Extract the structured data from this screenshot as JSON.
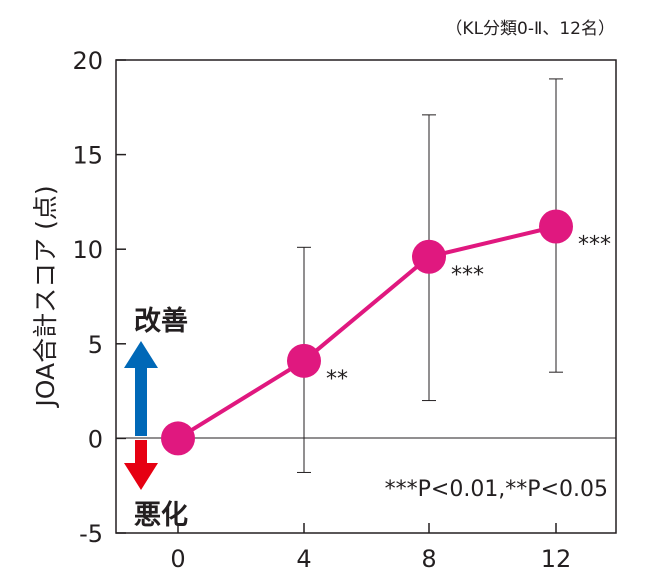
{
  "chart_data": {
    "type": "line",
    "note": "（KL分類0-Ⅱ、12名）",
    "ylabel": "JOA合計スコア (点)",
    "xlabel": "",
    "x": [
      0,
      4,
      8,
      12
    ],
    "x_ticks": [
      "0",
      "4",
      "8",
      "12"
    ],
    "ylim": [
      -5,
      20
    ],
    "y_ticks": [
      "-5",
      "0",
      "5",
      "10",
      "15",
      "20"
    ],
    "series": [
      {
        "values": [
          0,
          4.1,
          9.6,
          11.2
        ],
        "error_low": [
          0,
          -1.8,
          2.0,
          3.5
        ],
        "error_high": [
          0,
          10.1,
          17.1,
          19.0
        ],
        "significance": [
          "",
          "**",
          "***",
          "***"
        ],
        "color": "#e0187f"
      }
    ],
    "p_note": "***P<0.01,**P<0.05",
    "improve_label": "改善",
    "worsen_label": "悪化",
    "improve_color": "#0068b7",
    "worsen_color": "#e60012",
    "grid": false
  }
}
